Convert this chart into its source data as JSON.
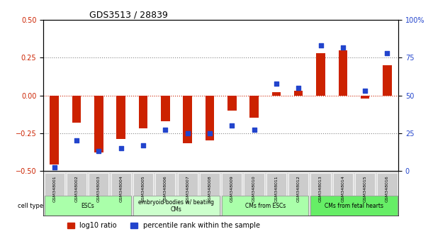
{
  "title": "GDS3513 / 28839",
  "samples": [
    "GSM348001",
    "GSM348002",
    "GSM348003",
    "GSM348004",
    "GSM348005",
    "GSM348006",
    "GSM348007",
    "GSM348008",
    "GSM348009",
    "GSM348010",
    "GSM348011",
    "GSM348012",
    "GSM348013",
    "GSM348014",
    "GSM348015",
    "GSM348016"
  ],
  "log10_ratio": [
    -0.46,
    -0.18,
    -0.38,
    -0.29,
    -0.22,
    -0.17,
    -0.32,
    -0.3,
    -0.1,
    -0.15,
    0.02,
    0.03,
    0.28,
    0.3,
    -0.02,
    0.2
  ],
  "percentile_rank": [
    2,
    20,
    13,
    15,
    17,
    27,
    25,
    25,
    30,
    27,
    58,
    55,
    83,
    82,
    53,
    78
  ],
  "ylim_left": [
    -0.5,
    0.5
  ],
  "ylim_right": [
    0,
    100
  ],
  "yticks_left": [
    -0.5,
    -0.25,
    0,
    0.25,
    0.5
  ],
  "yticks_right": [
    0,
    25,
    50,
    75,
    100
  ],
  "ytick_labels_right": [
    "0",
    "25",
    "50",
    "75",
    "100%"
  ],
  "bar_color": "#cc2200",
  "dot_color": "#2244cc",
  "hline_dotted_color": "#888888",
  "hline_zero_color": "#cc2200",
  "cell_types": [
    {
      "label": "ESCs",
      "start": 0,
      "end": 4,
      "color": "#aaffaa"
    },
    {
      "label": "embryoid bodies w/ beating\nCMs",
      "start": 4,
      "end": 8,
      "color": "#ccffcc"
    },
    {
      "label": "CMs from ESCs",
      "start": 8,
      "end": 12,
      "color": "#aaffaa"
    },
    {
      "label": "CMs from fetal hearts",
      "start": 12,
      "end": 16,
      "color": "#66ee66"
    }
  ],
  "legend_items": [
    {
      "color": "#cc2200",
      "label": "log10 ratio"
    },
    {
      "color": "#2244cc",
      "label": "percentile rank within the sample"
    }
  ],
  "bg_color": "#ffffff",
  "plot_bg_color": "#ffffff",
  "axis_label_color_left": "#cc2200",
  "axis_label_color_right": "#2244cc"
}
